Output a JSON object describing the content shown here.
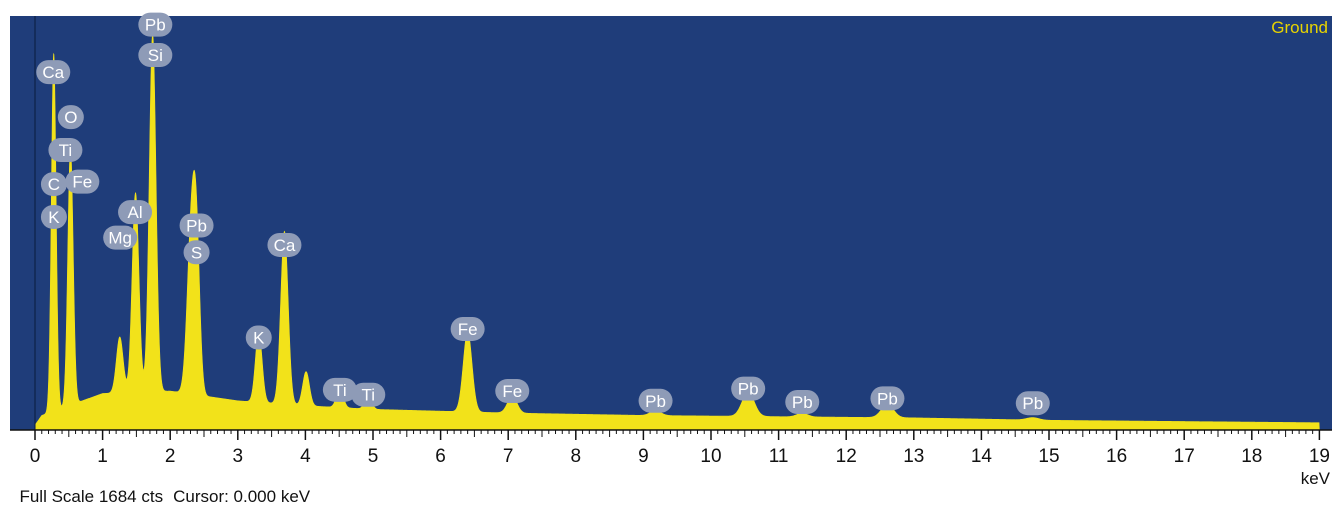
{
  "colors": {
    "plot_background": "#1f3d7a",
    "spectrum_fill": "#f2e21a",
    "label_bubble": "#8e9bb7",
    "label_text": "#ffffff",
    "sample_label": "#e8d400",
    "axis": "#111111"
  },
  "footer": {
    "full_scale": "Full Scale 1684 cts",
    "cursor": "Cursor: 0.000 keV",
    "unit": "keV"
  },
  "chart_data": {
    "type": "area",
    "series": [
      {
        "name": "Ground",
        "x_values_note": "",
        "points": []
      }
    ],
    "sample_label": "Ground",
    "xlabel": "keV",
    "xlim": [
      -0.4,
      19.0
    ],
    "ylim": [
      0,
      1684
    ],
    "x_ticks": [
      0,
      1,
      2,
      3,
      4,
      5,
      6,
      7,
      8,
      9,
      10,
      11,
      12,
      13,
      14,
      15,
      16,
      17,
      18,
      19
    ],
    "grid": false,
    "baseline": 30,
    "continuum": [
      {
        "x": 0.1,
        "y": 60
      },
      {
        "x": 1.0,
        "y": 150
      },
      {
        "x": 2.0,
        "y": 160
      },
      {
        "x": 3.0,
        "y": 120
      },
      {
        "x": 4.0,
        "y": 100
      },
      {
        "x": 5.0,
        "y": 85
      },
      {
        "x": 7.0,
        "y": 70
      },
      {
        "x": 9.0,
        "y": 60
      },
      {
        "x": 11.0,
        "y": 55
      },
      {
        "x": 13.0,
        "y": 50
      },
      {
        "x": 15.0,
        "y": 40
      },
      {
        "x": 19.0,
        "y": 30
      }
    ],
    "peaks": [
      {
        "x": 0.277,
        "y": 1470,
        "w": 0.035
      },
      {
        "x": 0.525,
        "y": 1060,
        "w": 0.04
      },
      {
        "x": 1.254,
        "y": 230,
        "w": 0.05
      },
      {
        "x": 1.487,
        "y": 820,
        "w": 0.05
      },
      {
        "x": 1.74,
        "y": 1470,
        "w": 0.05
      },
      {
        "x": 2.31,
        "y": 650,
        "w": 0.06
      },
      {
        "x": 2.39,
        "y": 550,
        "w": 0.05
      },
      {
        "x": 3.31,
        "y": 290,
        "w": 0.05
      },
      {
        "x": 3.69,
        "y": 710,
        "w": 0.055
      },
      {
        "x": 4.01,
        "y": 140,
        "w": 0.05
      },
      {
        "x": 4.51,
        "y": 80,
        "w": 0.05
      },
      {
        "x": 4.93,
        "y": 50,
        "w": 0.05
      },
      {
        "x": 6.4,
        "y": 330,
        "w": 0.065
      },
      {
        "x": 7.06,
        "y": 70,
        "w": 0.07
      },
      {
        "x": 9.18,
        "y": 20,
        "w": 0.08
      },
      {
        "x": 10.55,
        "y": 100,
        "w": 0.09
      },
      {
        "x": 11.35,
        "y": 15,
        "w": 0.08
      },
      {
        "x": 12.61,
        "y": 55,
        "w": 0.09
      },
      {
        "x": 14.76,
        "y": 10,
        "w": 0.09
      }
    ],
    "annotations": [
      {
        "text": "Ca",
        "x": 0.27,
        "y": 1470
      },
      {
        "text": "O",
        "x": 0.53,
        "y": 1285
      },
      {
        "text": "Ti",
        "x": 0.45,
        "y": 1150
      },
      {
        "text": "C",
        "x": 0.28,
        "y": 1010
      },
      {
        "text": "Fe",
        "x": 0.7,
        "y": 1020
      },
      {
        "text": "K",
        "x": 0.28,
        "y": 875
      },
      {
        "text": "Al",
        "x": 1.48,
        "y": 895
      },
      {
        "text": "Mg",
        "x": 1.26,
        "y": 790
      },
      {
        "text": "Pb",
        "x": 1.78,
        "y": 1665
      },
      {
        "text": "Si",
        "x": 1.78,
        "y": 1540
      },
      {
        "text": "Pb",
        "x": 2.39,
        "y": 840
      },
      {
        "text": "S",
        "x": 2.39,
        "y": 730
      },
      {
        "text": "Ca",
        "x": 3.69,
        "y": 760
      },
      {
        "text": "K",
        "x": 3.31,
        "y": 380
      },
      {
        "text": "Fe",
        "x": 6.4,
        "y": 415
      },
      {
        "text": "Ti",
        "x": 4.51,
        "y": 165
      },
      {
        "text": "Ti",
        "x": 4.93,
        "y": 145
      },
      {
        "text": "Fe",
        "x": 7.06,
        "y": 160
      },
      {
        "text": "Pb",
        "x": 9.18,
        "y": 120
      },
      {
        "text": "Pb",
        "x": 10.55,
        "y": 170
      },
      {
        "text": "Pb",
        "x": 11.35,
        "y": 115
      },
      {
        "text": "Pb",
        "x": 12.61,
        "y": 130
      },
      {
        "text": "Pb",
        "x": 14.76,
        "y": 110
      }
    ]
  }
}
